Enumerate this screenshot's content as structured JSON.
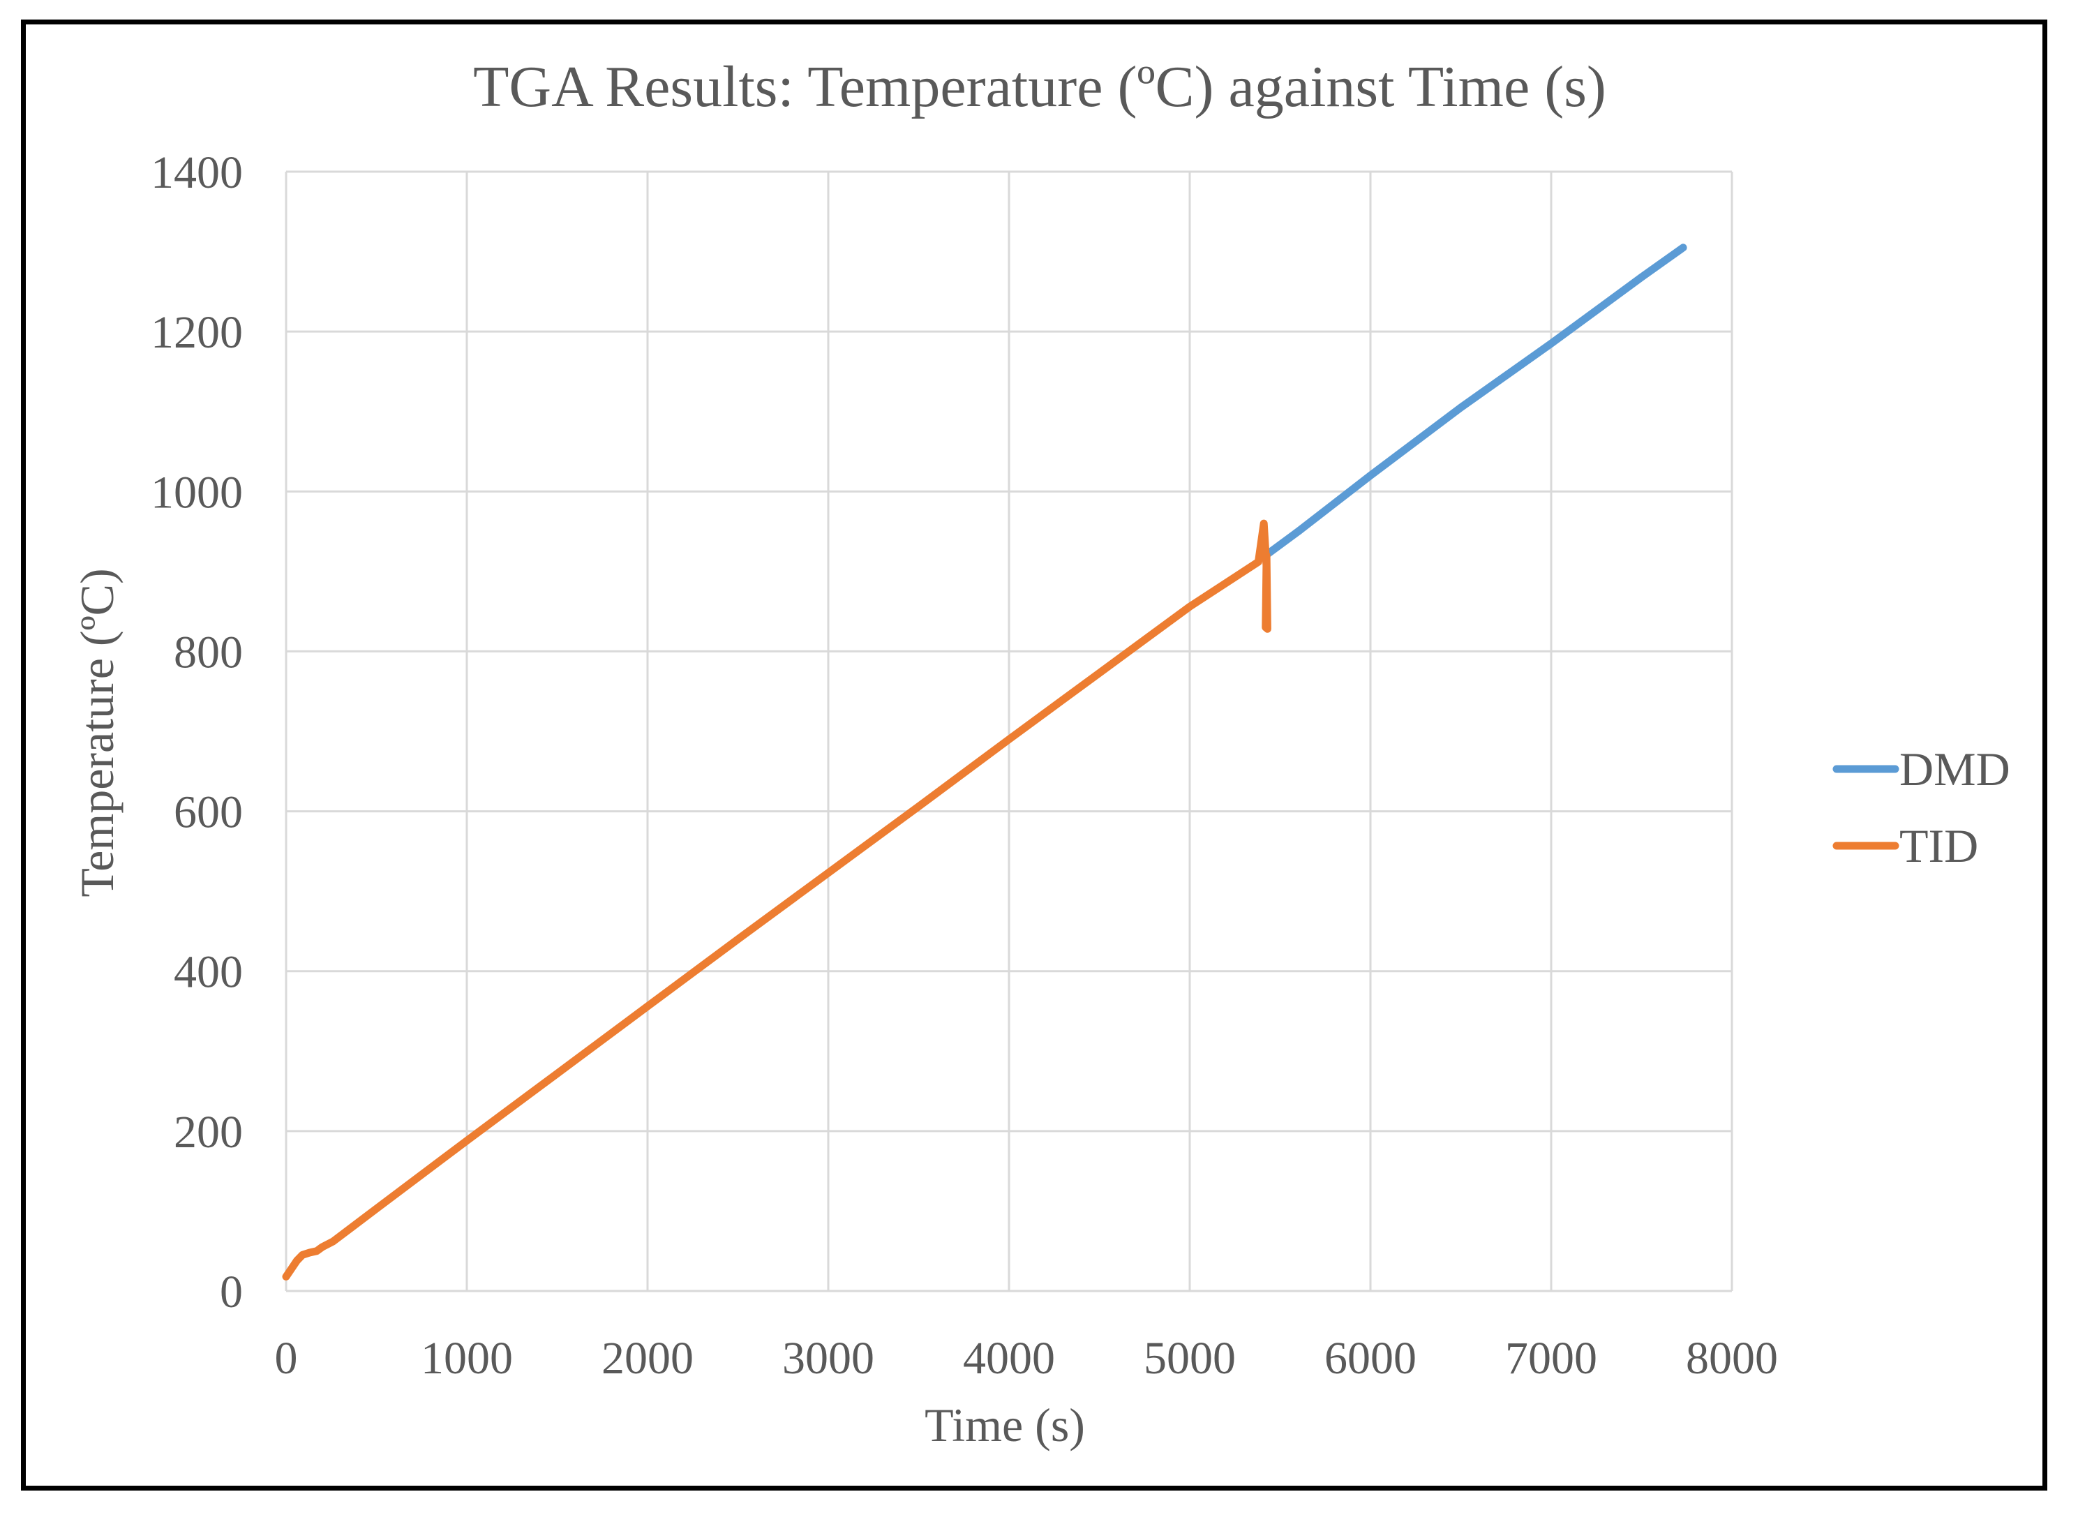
{
  "chart_data": {
    "type": "line",
    "title": "TGA Results: Temperature (ºC) against Time (s)",
    "xlabel": "Time (s)",
    "ylabel": "Temperature (ºC)",
    "xlim": [
      0,
      8000
    ],
    "ylim": [
      0,
      1400
    ],
    "x_ticks": [
      0,
      1000,
      2000,
      3000,
      4000,
      5000,
      6000,
      7000,
      8000
    ],
    "y_ticks": [
      0,
      200,
      400,
      600,
      800,
      1000,
      1200,
      1400
    ],
    "x_tick_labels": [
      "0",
      "1000",
      "2000",
      "3000",
      "4000",
      "5000",
      "6000",
      "7000",
      "8000"
    ],
    "y_tick_labels": [
      "0",
      "200",
      "400",
      "600",
      "800",
      "1000",
      "1200",
      "1400"
    ],
    "grid": true,
    "legend_position": "right",
    "series": [
      {
        "name": "DMD",
        "color": "#5B9BD5",
        "x": [
          5420,
          5600,
          6000,
          6500,
          7000,
          7500,
          7730
        ],
        "y": [
          920,
          950,
          1020,
          1105,
          1185,
          1268,
          1305
        ]
      },
      {
        "name": "TID",
        "color": "#ED7D31",
        "x": [
          0,
          30,
          60,
          90,
          130,
          170,
          200,
          260,
          500,
          1000,
          1500,
          2000,
          2500,
          3000,
          3500,
          4000,
          4500,
          5000,
          5380,
          5410,
          5425,
          5420,
          5425,
          5430
        ],
        "y": [
          18,
          28,
          38,
          45,
          48,
          50,
          55,
          62,
          103,
          188,
          272,
          356,
          440,
          523,
          606,
          690,
          773,
          856,
          912,
          960,
          905,
          830,
          920,
          828
        ]
      }
    ]
  }
}
